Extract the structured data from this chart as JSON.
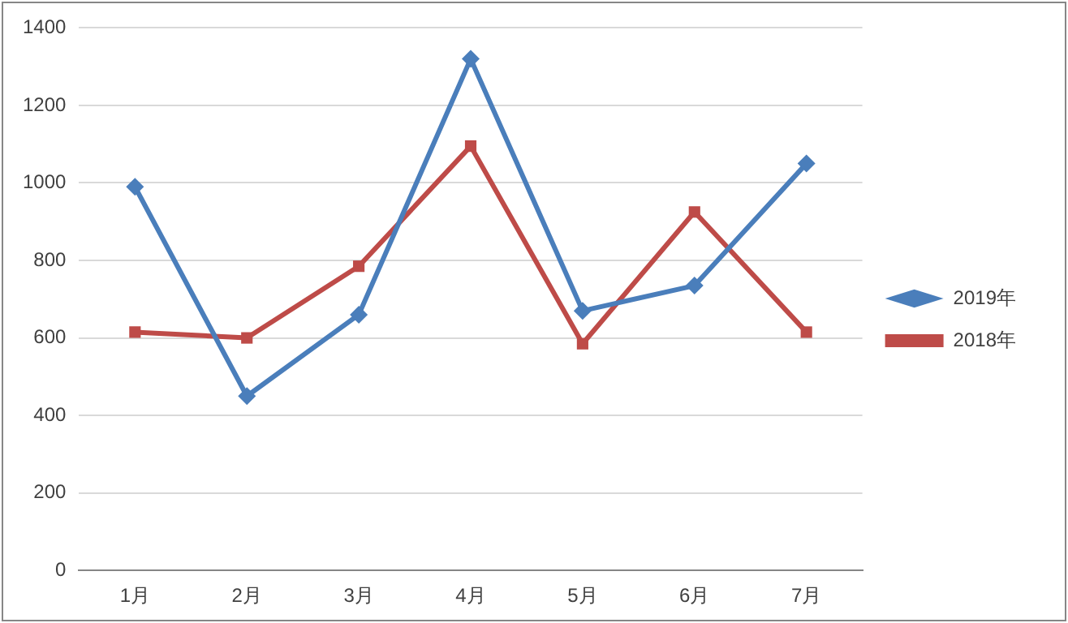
{
  "chart_data": {
    "type": "line",
    "categories": [
      "1月",
      "2月",
      "3月",
      "4月",
      "5月",
      "6月",
      "7月"
    ],
    "series": [
      {
        "name": "2019年",
        "color": "#4a7ebb",
        "marker": "diamond",
        "values": [
          990,
          450,
          660,
          1320,
          670,
          735,
          1050
        ]
      },
      {
        "name": "2018年",
        "color": "#be4b48",
        "marker": "square",
        "values": [
          615,
          600,
          785,
          1095,
          585,
          925,
          615
        ]
      }
    ],
    "ylim": [
      0,
      1400
    ],
    "yticks": [
      0,
      200,
      400,
      600,
      800,
      1000,
      1200,
      1400
    ],
    "grid": "y",
    "legend": "right",
    "line_style": "solid"
  }
}
